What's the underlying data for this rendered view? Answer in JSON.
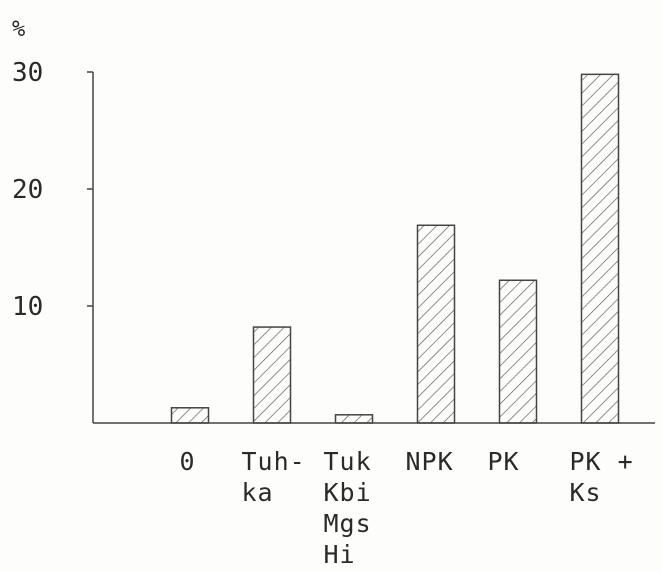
{
  "chart_data": {
    "type": "bar",
    "ylabel": "%",
    "ylim": [
      0,
      30
    ],
    "yticks": [
      "10",
      "20",
      "30"
    ],
    "ytick_values": [
      10,
      20,
      30
    ],
    "grid": false,
    "pattern": "diagonal-hatch",
    "categories": [
      {
        "lines": [
          "0"
        ]
      },
      {
        "lines": [
          "Tuh-",
          "ka"
        ]
      },
      {
        "lines": [
          "Tuk",
          "Kbi",
          "Mgs",
          "Hi"
        ]
      },
      {
        "lines": [
          "NPK"
        ]
      },
      {
        "lines": [
          "PK"
        ]
      },
      {
        "lines": [
          "PK +",
          "Ks"
        ]
      }
    ],
    "values": [
      1.3,
      8.2,
      0.7,
      16.9,
      12.2,
      29.8
    ]
  }
}
